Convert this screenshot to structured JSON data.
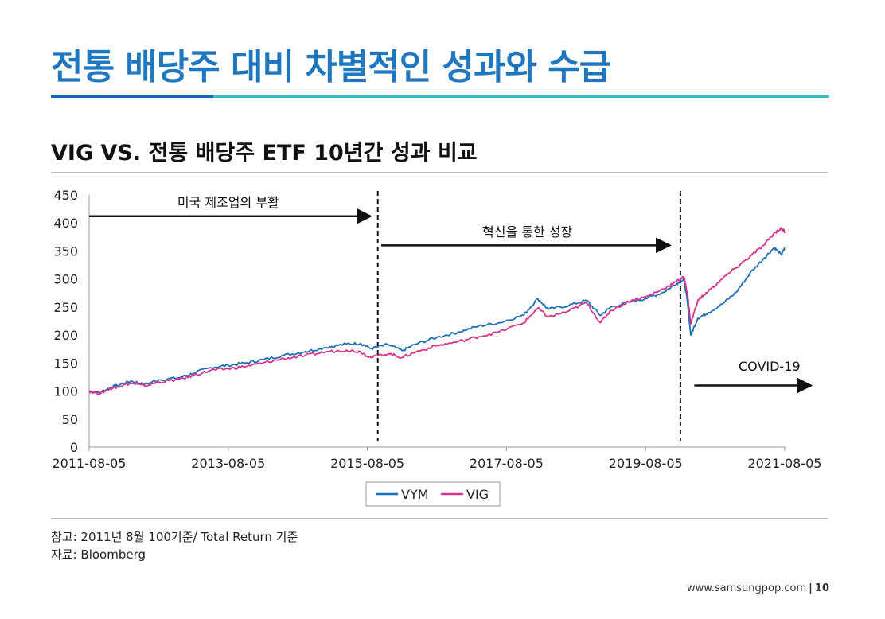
{
  "page": {
    "title": "전통 배당주 대비 차별적인 성과와 수급",
    "subtitle": "VIG VS. 전통 배당주 ETF 10년간 성과 비교",
    "note": "참고: 2011년  8월 100기준/ Total Return 기준",
    "source": "자료: Bloomberg",
    "website": "www.samsungpop.com",
    "page_number": "10"
  },
  "colors": {
    "title": "#1f77c0",
    "vym": "#1f6fb5",
    "vig": "#d6338a",
    "accent_rule_left": "#1565b5",
    "accent_rule_right": "#3fb8c3"
  },
  "chart_data": {
    "type": "line",
    "title": "VIG VS. 전통 배당주 ETF 10년간 성과 비교",
    "xlabel": "",
    "ylabel": "",
    "x_range": [
      2011.6,
      2021.6
    ],
    "ylim": [
      0,
      450
    ],
    "yticks": [
      0,
      50,
      100,
      150,
      200,
      250,
      300,
      350,
      400,
      450
    ],
    "xticks": [
      {
        "label": "2011-08-05",
        "t": 2011.6
      },
      {
        "label": "2013-08-05",
        "t": 2013.6
      },
      {
        "label": "2015-08-05",
        "t": 2015.6
      },
      {
        "label": "2017-08-05",
        "t": 2017.6
      },
      {
        "label": "2019-08-05",
        "t": 2019.6
      },
      {
        "label": "2021-08-05",
        "t": 2021.6
      }
    ],
    "legend": {
      "position": "bottom-center"
    },
    "series": [
      {
        "name": "VYM",
        "color": "#1f6fb5",
        "points": [
          [
            2011.6,
            100
          ],
          [
            2011.75,
            97
          ],
          [
            2011.9,
            106
          ],
          [
            2012.0,
            110
          ],
          [
            2012.2,
            118
          ],
          [
            2012.4,
            112
          ],
          [
            2012.6,
            120
          ],
          [
            2012.9,
            124
          ],
          [
            2013.1,
            132
          ],
          [
            2013.35,
            142
          ],
          [
            2013.6,
            146
          ],
          [
            2013.85,
            150
          ],
          [
            2014.1,
            156
          ],
          [
            2014.4,
            164
          ],
          [
            2014.7,
            170
          ],
          [
            2015.0,
            178
          ],
          [
            2015.3,
            184
          ],
          [
            2015.5,
            185
          ],
          [
            2015.65,
            176
          ],
          [
            2015.9,
            183
          ],
          [
            2016.1,
            172
          ],
          [
            2016.3,
            184
          ],
          [
            2016.6,
            196
          ],
          [
            2016.9,
            205
          ],
          [
            2017.2,
            216
          ],
          [
            2017.5,
            222
          ],
          [
            2017.85,
            236
          ],
          [
            2018.05,
            265
          ],
          [
            2018.2,
            246
          ],
          [
            2018.5,
            253
          ],
          [
            2018.75,
            262
          ],
          [
            2018.95,
            235
          ],
          [
            2019.1,
            250
          ],
          [
            2019.4,
            260
          ],
          [
            2019.6,
            265
          ],
          [
            2019.85,
            276
          ],
          [
            2020.05,
            292
          ],
          [
            2020.15,
            300
          ],
          [
            2020.2,
            260
          ],
          [
            2020.25,
            200
          ],
          [
            2020.35,
            230
          ],
          [
            2020.5,
            240
          ],
          [
            2020.7,
            255
          ],
          [
            2020.9,
            276
          ],
          [
            2021.1,
            310
          ],
          [
            2021.3,
            337
          ],
          [
            2021.45,
            356
          ],
          [
            2021.55,
            343
          ],
          [
            2021.6,
            355
          ]
        ]
      },
      {
        "name": "VIG",
        "color": "#d6338a",
        "points": [
          [
            2011.6,
            100
          ],
          [
            2011.75,
            96
          ],
          [
            2011.9,
            104
          ],
          [
            2012.0,
            108
          ],
          [
            2012.2,
            114
          ],
          [
            2012.4,
            109
          ],
          [
            2012.6,
            116
          ],
          [
            2012.9,
            121
          ],
          [
            2013.1,
            128
          ],
          [
            2013.35,
            137
          ],
          [
            2013.6,
            140
          ],
          [
            2013.85,
            144
          ],
          [
            2014.1,
            150
          ],
          [
            2014.4,
            158
          ],
          [
            2014.7,
            163
          ],
          [
            2015.0,
            170
          ],
          [
            2015.3,
            173
          ],
          [
            2015.5,
            170
          ],
          [
            2015.65,
            160
          ],
          [
            2015.9,
            167
          ],
          [
            2016.1,
            160
          ],
          [
            2016.3,
            170
          ],
          [
            2016.6,
            181
          ],
          [
            2016.9,
            188
          ],
          [
            2017.2,
            197
          ],
          [
            2017.5,
            206
          ],
          [
            2017.85,
            222
          ],
          [
            2018.05,
            248
          ],
          [
            2018.2,
            232
          ],
          [
            2018.5,
            243
          ],
          [
            2018.75,
            258
          ],
          [
            2018.95,
            222
          ],
          [
            2019.1,
            244
          ],
          [
            2019.4,
            262
          ],
          [
            2019.6,
            268
          ],
          [
            2019.85,
            282
          ],
          [
            2020.05,
            296
          ],
          [
            2020.15,
            304
          ],
          [
            2020.2,
            275
          ],
          [
            2020.25,
            220
          ],
          [
            2020.35,
            262
          ],
          [
            2020.5,
            278
          ],
          [
            2020.7,
            300
          ],
          [
            2020.9,
            320
          ],
          [
            2021.1,
            340
          ],
          [
            2021.3,
            360
          ],
          [
            2021.45,
            382
          ],
          [
            2021.55,
            390
          ],
          [
            2021.6,
            385
          ]
        ]
      }
    ],
    "annotations": [
      {
        "id": "ann-manufacturing",
        "text": "미국 제조업의 부활",
        "arrow_from": [
          2011.6,
          412
        ],
        "arrow_to": [
          2015.65,
          412
        ],
        "label_at": [
          2013.6,
          437
        ]
      },
      {
        "id": "ann-innovation",
        "text": "혁신을 통한 성장",
        "arrow_from": [
          2015.8,
          360
        ],
        "arrow_to": [
          2019.95,
          360
        ],
        "label_at": [
          2017.9,
          385
        ]
      },
      {
        "id": "ann-covid",
        "text": "COVID-19",
        "arrow_from": [
          2020.3,
          110
        ],
        "arrow_to": [
          2021.98,
          110
        ],
        "label_at": [
          2021.38,
          145
        ]
      }
    ],
    "reference_lines": [
      2015.75,
      2020.1
    ]
  }
}
